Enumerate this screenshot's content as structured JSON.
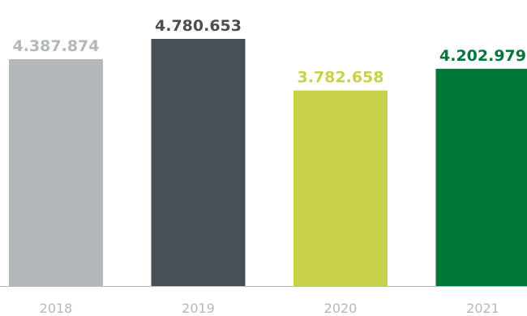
{
  "chart_data": {
    "type": "bar",
    "categories": [
      "2018",
      "2019",
      "2020",
      "2021"
    ],
    "values": [
      4387874,
      4780653,
      3782658,
      4202979
    ],
    "value_labels": [
      "4.387.874",
      "4.780.653",
      "3.782.658",
      "4.202.979"
    ],
    "bar_colors": [
      "#b3b8ba",
      "#495055",
      "#c8d14a",
      "#00783a"
    ],
    "label_colors": [
      "#b3b8ba",
      "#495055",
      "#c8d14a",
      "#00783a"
    ],
    "axis_color": "#b3b8ba",
    "title": "",
    "xlabel": "",
    "ylabel": "",
    "ylim": [
      0,
      4780653
    ],
    "grid": false,
    "legend": "none"
  }
}
